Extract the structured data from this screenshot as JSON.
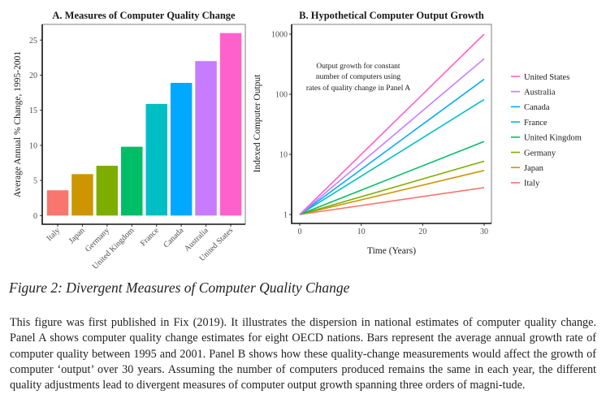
{
  "chart_data": [
    {
      "type": "bar",
      "title": "A.  Measures of Computer Quality Change",
      "xlabel": "",
      "ylabel": "Average Annual % Change, 1995-2001",
      "categories": [
        "Italy",
        "Japan",
        "Germany",
        "United Kingdom",
        "France",
        "Canada",
        "Australia",
        "United States"
      ],
      "values": [
        3.6,
        5.9,
        7.1,
        9.8,
        15.9,
        18.9,
        22.0,
        26.0
      ],
      "colors": [
        "#F8766D",
        "#CD9600",
        "#7CAE00",
        "#00BE67",
        "#00BFC4",
        "#00A9FF",
        "#C77CFF",
        "#FF61CC"
      ],
      "ylim": [
        0,
        27.5
      ],
      "yticks": [
        0,
        5,
        10,
        15,
        20,
        25
      ],
      "ytick_labels": [
        "0",
        "5",
        "10",
        "15",
        "20",
        "25"
      ],
      "grid": false
    },
    {
      "type": "line",
      "title": "B.  Hypothetical Computer Output Growth",
      "xlabel": "Time (Years)",
      "ylabel": "Indexed Computer Output",
      "yscale": "log",
      "xlim": [
        0,
        30
      ],
      "ylim": [
        1,
        1000
      ],
      "xticks": [
        0,
        10,
        20,
        30
      ],
      "xtick_labels": [
        "0",
        "10",
        "20",
        "30"
      ],
      "yticks": [
        1,
        10,
        100,
        1000
      ],
      "ytick_labels": [
        "1",
        "10",
        "100",
        "1000"
      ],
      "grid": false,
      "annotation": [
        "Output growth for constant",
        "number of computers using",
        "rates of quality change in Panel A"
      ],
      "legend_position": "right",
      "series": [
        {
          "name": "United States",
          "color": "#FF61CC",
          "x": [
            0,
            30
          ],
          "values": [
            1,
            1000
          ]
        },
        {
          "name": "Australia",
          "color": "#C77CFF",
          "x": [
            0,
            30
          ],
          "values": [
            1,
            390
          ]
        },
        {
          "name": "Canada",
          "color": "#00A9FF",
          "x": [
            0,
            30
          ],
          "values": [
            1,
            178
          ]
        },
        {
          "name": "France",
          "color": "#00BFC4",
          "x": [
            0,
            30
          ],
          "values": [
            1,
            82
          ]
        },
        {
          "name": "United Kingdom",
          "color": "#00BE67",
          "x": [
            0,
            30
          ],
          "values": [
            1,
            16.4
          ]
        },
        {
          "name": "Germany",
          "color": "#7CAE00",
          "x": [
            0,
            30
          ],
          "values": [
            1,
            7.7
          ]
        },
        {
          "name": "Japan",
          "color": "#CD9600",
          "x": [
            0,
            30
          ],
          "values": [
            1,
            5.4
          ]
        },
        {
          "name": "Italy",
          "color": "#F8766D",
          "x": [
            0,
            30
          ],
          "values": [
            1,
            2.8
          ]
        }
      ]
    }
  ],
  "caption": "Figure 2: Divergent Measures of Computer Quality Change",
  "body_text": "This figure was first published in Fix (2019). It illustrates the dispersion in national estimates of computer quality change. Panel A shows computer quality change estimates for eight OECD nations. Bars represent the average annual growth rate of computer quality between 1995 and 2001. Panel B shows how these quality-change measurements would affect the growth of computer ‘output’ over 30 years. Assuming the number of computers produced remains the same in each year, the different quality adjustments lead to divergent measures of computer output growth spanning three orders of magni-tude."
}
